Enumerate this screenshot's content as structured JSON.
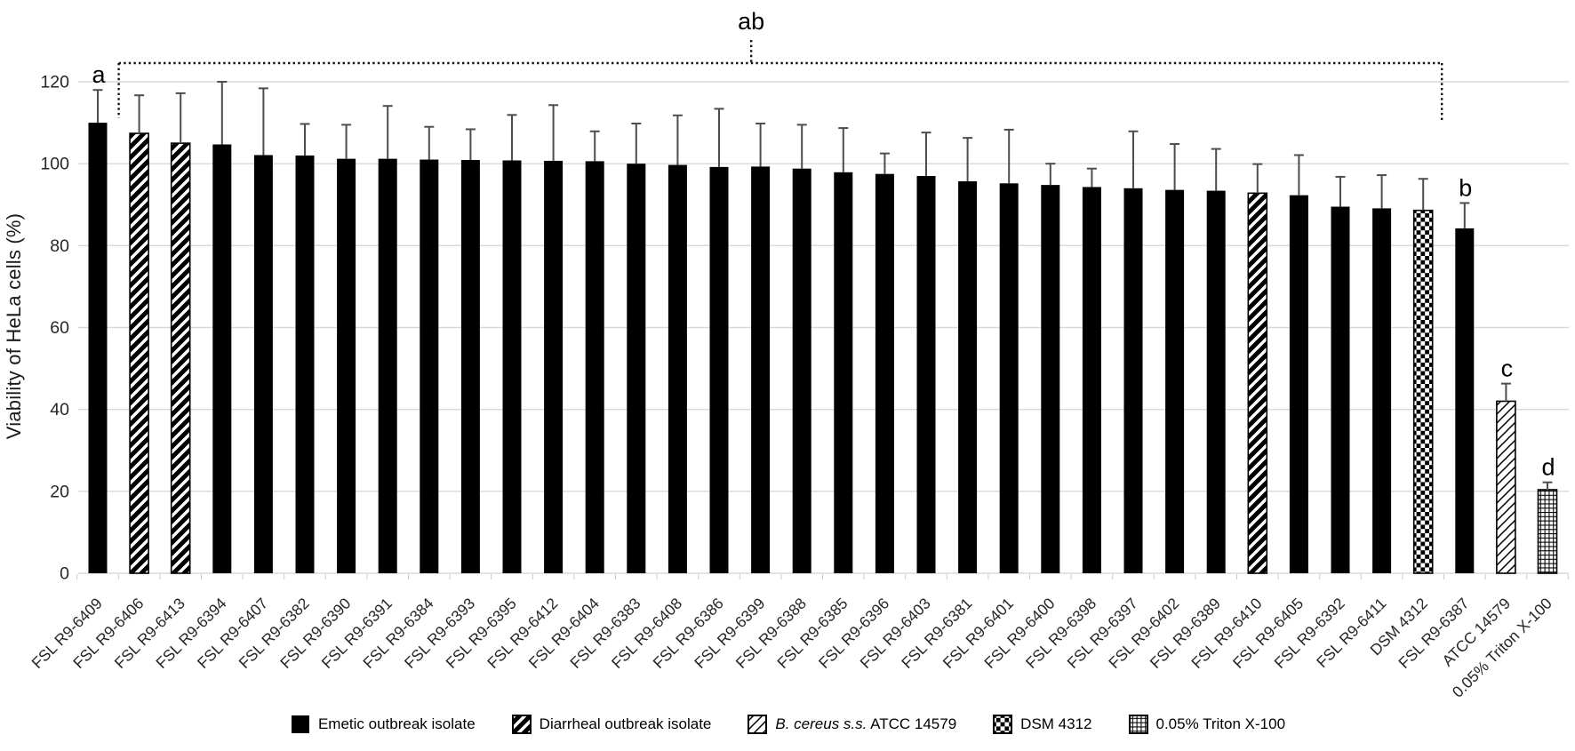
{
  "chart_data": {
    "type": "bar",
    "title": "",
    "xlabel": "",
    "ylabel": "Viability of HeLa cells (%)",
    "ylim": [
      0,
      120
    ],
    "ytick_step": 20,
    "grid": true,
    "legend_position": "bottom",
    "categories": [
      "FSL R9-6409",
      "FSL R9-6406",
      "FSL R9-6413",
      "FSL R9-6394",
      "FSL R9-6407",
      "FSL R9-6382",
      "FSL R9-6390",
      "FSL R9-6391",
      "FSL R9-6384",
      "FSL R9-6393",
      "FSL R9-6395",
      "FSL R9-6412",
      "FSL R9-6404",
      "FSL R9-6383",
      "FSL R9-6408",
      "FSL R9-6386",
      "FSL R9-6399",
      "FSL R9-6388",
      "FSL R9-6385",
      "FSL R9-6396",
      "FSL R9-6403",
      "FSL R9-6381",
      "FSL R9-6401",
      "FSL R9-6400",
      "FSL R9-6398",
      "FSL R9-6397",
      "FSL R9-6402",
      "FSL R9-6389",
      "FSL R9-6410",
      "FSL R9-6405",
      "FSL R9-6392",
      "FSL R9-6411",
      "DSM 4312",
      "FSL R9-6387",
      "ATCC 14579",
      "0.05% Triton X-100"
    ],
    "values": [
      110,
      107.4,
      105,
      104.7,
      102.1,
      102,
      101.2,
      101.2,
      101,
      100.9,
      100.8,
      100.7,
      100.6,
      100,
      99.7,
      99.2,
      99.3,
      98.8,
      97.9,
      97.5,
      97,
      95.7,
      95.2,
      94.8,
      94.3,
      94,
      93.6,
      93.4,
      92.8,
      92.3,
      89.5,
      89.1,
      88.6,
      84.2,
      42,
      20.4
    ],
    "errors_up": [
      8,
      9.3,
      12.2,
      15.3,
      16.3,
      7.7,
      8.3,
      12.9,
      8,
      7.5,
      11.1,
      13.6,
      7.3,
      9.8,
      12.1,
      14.2,
      10.5,
      10.7,
      10.8,
      5,
      10.6,
      10.6,
      13.1,
      5.2,
      4.5,
      13.9,
      11.2,
      10.2,
      7.1,
      9.8,
      7.3,
      8.1,
      7.7,
      6.2,
      4.3,
      1.8
    ],
    "bar_styles": [
      "emetic",
      "diarrheal",
      "diarrheal",
      "emetic",
      "emetic",
      "emetic",
      "emetic",
      "emetic",
      "emetic",
      "emetic",
      "emetic",
      "emetic",
      "emetic",
      "emetic",
      "emetic",
      "emetic",
      "emetic",
      "emetic",
      "emetic",
      "emetic",
      "emetic",
      "emetic",
      "emetic",
      "emetic",
      "emetic",
      "emetic",
      "emetic",
      "emetic",
      "diarrheal",
      "emetic",
      "emetic",
      "emetic",
      "dsm",
      "emetic",
      "atcc",
      "triton"
    ],
    "yticks": [
      "0",
      "20",
      "40",
      "60",
      "80",
      "100",
      "120"
    ],
    "legend": [
      {
        "key": "emetic",
        "label": "Emetic outbreak isolate",
        "swatch": "solid-black"
      },
      {
        "key": "diarrheal",
        "label": "Diarrheal outbreak isolate",
        "swatch": "diagonal-hatch"
      },
      {
        "key": "atcc",
        "label_italic_prefix": "B. cereus s.s.",
        "label": " ATCC 14579",
        "swatch": "wide-diagonal"
      },
      {
        "key": "dsm",
        "label": "DSM 4312",
        "swatch": "checkerboard"
      },
      {
        "key": "triton",
        "label": "0.05% Triton X-100",
        "swatch": "grid"
      }
    ],
    "significance_labels": [
      {
        "text": "a",
        "bar": "FSL R9-6409"
      },
      {
        "text": "b",
        "bar": "FSL R9-6387"
      },
      {
        "text": "c",
        "bar": "ATCC 14579"
      },
      {
        "text": "d",
        "bar": "0.05% Triton X-100"
      },
      {
        "text": "ab",
        "type": "bracket",
        "from_bar": "FSL R9-6406",
        "to_bar": "DSM 4312"
      }
    ],
    "colors": {
      "bar": "#000000",
      "grid": "#d9d9d9",
      "axis_text": "#262626",
      "error_bar": "#4d4d4d",
      "annotation": "#000000"
    }
  }
}
